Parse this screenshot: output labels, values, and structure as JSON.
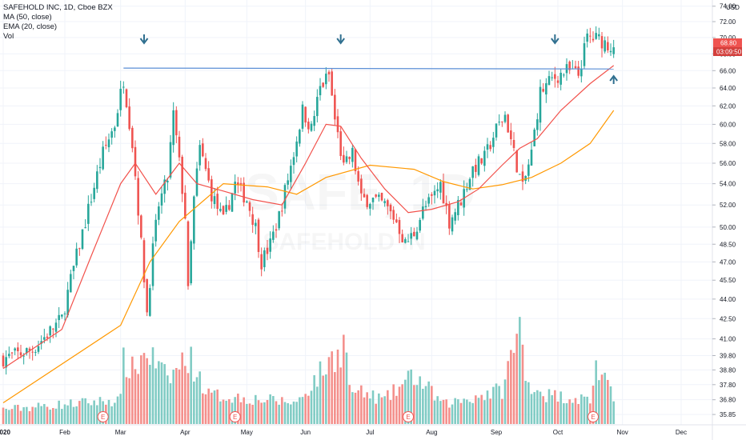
{
  "legend": {
    "symbol": "SAFEHOLD INC, 1D, Cboe BZX",
    "ma": "MA (50, close)",
    "ema": "EMA (20, close)",
    "vol": "Vol"
  },
  "watermark": {
    "ticker": "SAFE, 1D",
    "name": "SAFEHOLD IN"
  },
  "currency": "USD",
  "price_badge": {
    "price": "68.80",
    "countdown": "03:09:50"
  },
  "colors": {
    "up": "#26a69a",
    "down": "#ef5350",
    "vol_up": "#80cbc4",
    "vol_down": "#f48f8b",
    "ma50": "#ff9800",
    "ema20": "#f2514b",
    "resistance": "#5b8fd6",
    "arrow": "#2f6f8f",
    "badge_red": "#ef5350",
    "badge_dark": "#d33f3c"
  },
  "earnings_marker": "E",
  "chart_data": {
    "type": "candlestick",
    "scale": "log",
    "y_ticks": [
      "74.00",
      "72.00",
      "70.00",
      "68.00",
      "66.00",
      "64.00",
      "62.00",
      "60.00",
      "58.00",
      "56.00",
      "54.00",
      "52.00",
      "50.00",
      "48.50",
      "47.00",
      "45.50",
      "44.00",
      "42.50",
      "41.00",
      "39.80",
      "38.80",
      "37.80",
      "36.80",
      "35.85"
    ],
    "ylim": [
      35.4,
      74.5
    ],
    "x_labels": [
      "2020",
      "Feb",
      "Mar",
      "Apr",
      "May",
      "Jun",
      "Jul",
      "Aug",
      "Sep",
      "Oct",
      "Nov",
      "Dec"
    ],
    "x_label_days": [
      0,
      21,
      40,
      62,
      83,
      103,
      125,
      146,
      168,
      189,
      211,
      231
    ],
    "xlim": [
      0,
      240
    ],
    "keypoints": [
      [
        0,
        39.6
      ],
      [
        10,
        40.2
      ],
      [
        20,
        42.5
      ],
      [
        28,
        50.5
      ],
      [
        34,
        57.0
      ],
      [
        38,
        60.0
      ],
      [
        41,
        65.0
      ],
      [
        44,
        58.0
      ],
      [
        47,
        48.5
      ],
      [
        49,
        43.0
      ],
      [
        51,
        48.0
      ],
      [
        53,
        52.0
      ],
      [
        56,
        54.5
      ],
      [
        58,
        61.0
      ],
      [
        60,
        56.0
      ],
      [
        62,
        51.0
      ],
      [
        63,
        44.5
      ],
      [
        65,
        52.5
      ],
      [
        67,
        57.5
      ],
      [
        71,
        53.0
      ],
      [
        75,
        50.5
      ],
      [
        79,
        54.0
      ],
      [
        83,
        52.5
      ],
      [
        86,
        50.0
      ],
      [
        88,
        47.0
      ],
      [
        91,
        48.5
      ],
      [
        94,
        51.0
      ],
      [
        97,
        54.5
      ],
      [
        99,
        57.0
      ],
      [
        102,
        61.5
      ],
      [
        105,
        59.5
      ],
      [
        108,
        64.0
      ],
      [
        111,
        65.5
      ],
      [
        113,
        60.5
      ],
      [
        116,
        55.5
      ],
      [
        119,
        57.0
      ],
      [
        122,
        52.5
      ],
      [
        126,
        52.5
      ],
      [
        130,
        52.0
      ],
      [
        134,
        50.5
      ],
      [
        137,
        48.5
      ],
      [
        140,
        49.5
      ],
      [
        143,
        51.5
      ],
      [
        146,
        52.5
      ],
      [
        149,
        54.0
      ],
      [
        152,
        50.5
      ],
      [
        156,
        52.5
      ],
      [
        160,
        55.5
      ],
      [
        164,
        56.5
      ],
      [
        168,
        59.5
      ],
      [
        171,
        61.0
      ],
      [
        174,
        57.0
      ],
      [
        177,
        53.5
      ],
      [
        180,
        57.0
      ],
      [
        183,
        63.5
      ],
      [
        187,
        65.0
      ],
      [
        192,
        66.0
      ],
      [
        196,
        65.5
      ],
      [
        199,
        70.0
      ],
      [
        203,
        69.8
      ],
      [
        208,
        68.8
      ]
    ],
    "ma50_line": [
      [
        0,
        36.6
      ],
      [
        40,
        42.0
      ],
      [
        50,
        47.0
      ],
      [
        60,
        50.5
      ],
      [
        75,
        54.0
      ],
      [
        90,
        53.7
      ],
      [
        100,
        53.0
      ],
      [
        110,
        54.6
      ],
      [
        125,
        55.8
      ],
      [
        140,
        55.4
      ],
      [
        150,
        54.2
      ],
      [
        160,
        53.5
      ],
      [
        170,
        53.9
      ],
      [
        180,
        54.6
      ],
      [
        190,
        56.0
      ],
      [
        200,
        58.0
      ],
      [
        208,
        61.5
      ]
    ],
    "ema20_line": [
      [
        0,
        38.9
      ],
      [
        20,
        41.7
      ],
      [
        30,
        47.5
      ],
      [
        40,
        54.0
      ],
      [
        45,
        56.0
      ],
      [
        52,
        53.0
      ],
      [
        60,
        56.0
      ],
      [
        66,
        54.0
      ],
      [
        75,
        53.3
      ],
      [
        85,
        52.5
      ],
      [
        95,
        52.0
      ],
      [
        103,
        56.0
      ],
      [
        110,
        60.0
      ],
      [
        115,
        59.8
      ],
      [
        122,
        56.5
      ],
      [
        130,
        53.5
      ],
      [
        138,
        51.3
      ],
      [
        146,
        51.6
      ],
      [
        155,
        52.3
      ],
      [
        162,
        53.5
      ],
      [
        170,
        55.8
      ],
      [
        176,
        57.5
      ],
      [
        182,
        58.5
      ],
      [
        190,
        61.5
      ],
      [
        200,
        64.5
      ],
      [
        208,
        66.6
      ]
    ],
    "resistance_line": [
      [
        41,
        66.3
      ],
      [
        208,
        66.2
      ]
    ],
    "volume_profile": [
      [
        0,
        0.15
      ],
      [
        40,
        0.25
      ],
      [
        41,
        0.65
      ],
      [
        44,
        0.55
      ],
      [
        49,
        0.75
      ],
      [
        56,
        0.45
      ],
      [
        63,
        0.7
      ],
      [
        70,
        0.3
      ],
      [
        100,
        0.22
      ],
      [
        117,
        0.85
      ],
      [
        118,
        0.35
      ],
      [
        130,
        0.25
      ],
      [
        140,
        0.5
      ],
      [
        150,
        0.2
      ],
      [
        170,
        0.35
      ],
      [
        176,
        1.0
      ],
      [
        178,
        0.45
      ],
      [
        185,
        0.3
      ],
      [
        200,
        0.25
      ],
      [
        202,
        0.6
      ],
      [
        208,
        0.25
      ]
    ],
    "earnings_days": [
      34,
      79,
      138,
      201
    ],
    "arrows": [
      {
        "day": 48,
        "dir": "down"
      },
      {
        "day": 115,
        "dir": "down"
      },
      {
        "day": 188,
        "dir": "down"
      },
      {
        "day": 208,
        "dir": "up"
      }
    ],
    "last_price": 68.8
  }
}
